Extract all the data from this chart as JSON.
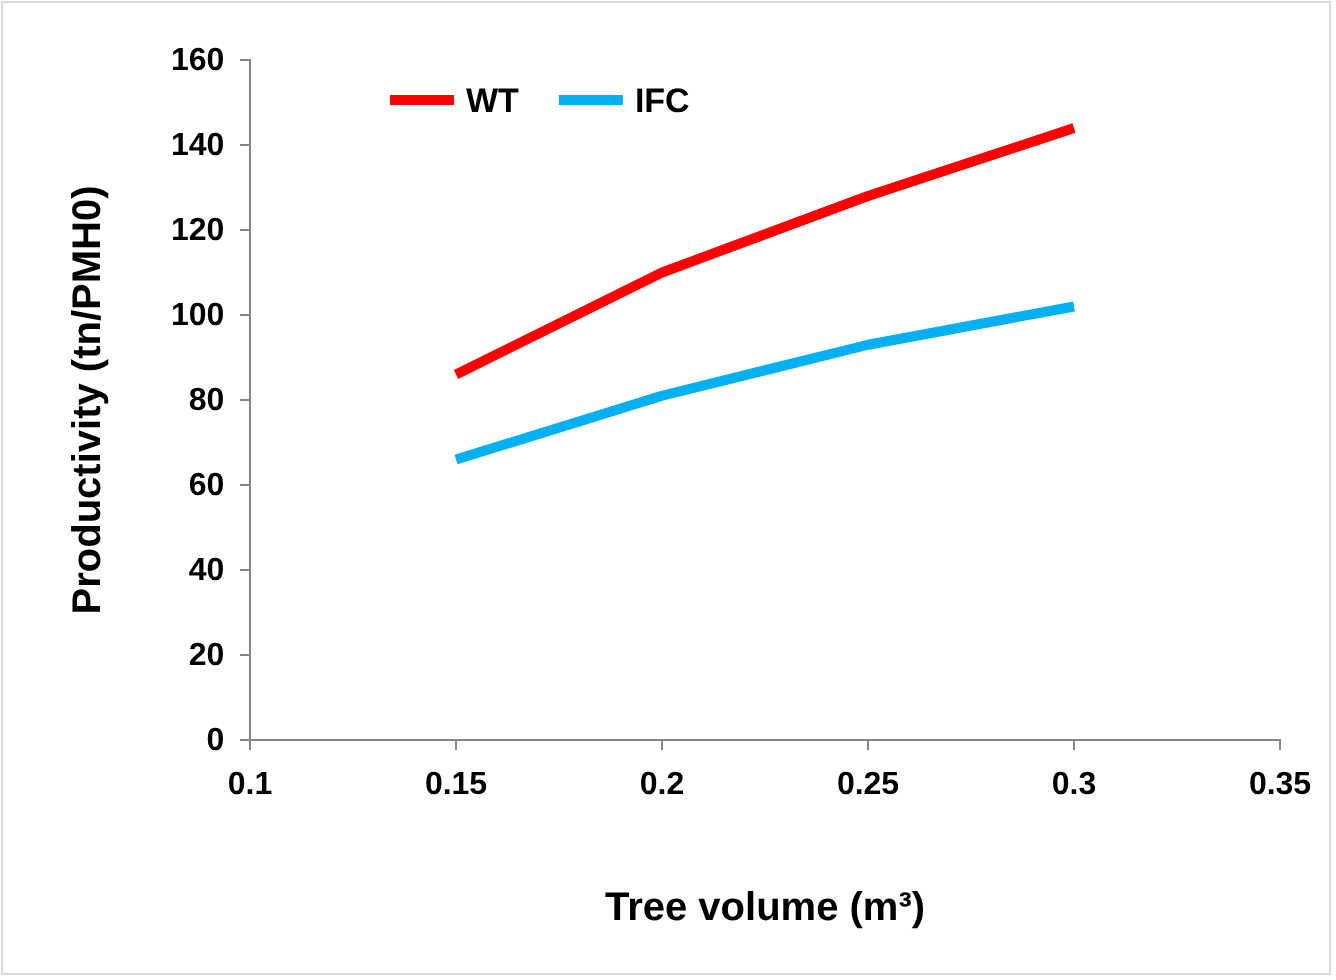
{
  "chart_data": {
    "type": "line",
    "xlabel": "Tree volume (m³)",
    "ylabel": "Productivity (tn/PMH0)",
    "xlim": [
      0.1,
      0.35
    ],
    "xticks": [
      0.1,
      0.15,
      0.2,
      0.25,
      0.3,
      0.35
    ],
    "ylim": [
      0,
      160
    ],
    "yticks": [
      0,
      20,
      40,
      60,
      80,
      100,
      120,
      140,
      160
    ],
    "x": [
      0.15,
      0.2,
      0.25,
      0.3
    ],
    "grid": false,
    "legend": "top left",
    "marker": "none",
    "line_style": "solid",
    "series": [
      {
        "name": "WT",
        "color": "#ff0000",
        "values": [
          86,
          110,
          128,
          144
        ]
      },
      {
        "name": "IFC",
        "color": "#00b0f0",
        "values": [
          66,
          81,
          93,
          102
        ]
      }
    ]
  }
}
